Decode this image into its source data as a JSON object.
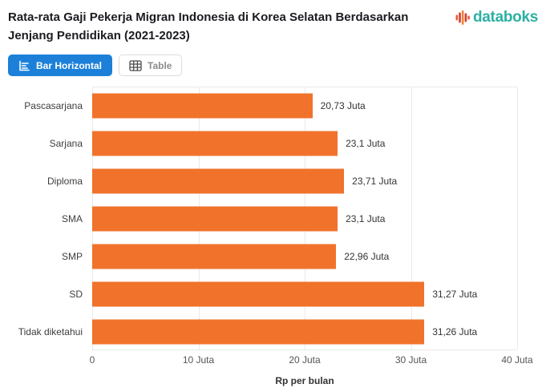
{
  "header": {
    "title_line1": "Rata-rata Gaji Pekerja Migran Indonesia di Korea Selatan Berdasarkan",
    "title_line2": "Jenjang Pendidikan (2021-2023)",
    "logo_text": "databoks"
  },
  "toolbar": {
    "bar_horizontal_label": "Bar Horizontal",
    "table_label": "Table"
  },
  "chart_data": {
    "type": "bar",
    "orientation": "horizontal",
    "title": "Rata-rata Gaji Pekerja Migran Indonesia di Korea Selatan Berdasarkan Jenjang Pendidikan (2021-2023)",
    "categories": [
      "Pascasarjana",
      "Sarjana",
      "Diploma",
      "SMA",
      "SMP",
      "SD",
      "Tidak diketahui"
    ],
    "values": [
      20.73,
      23.1,
      23.71,
      23.1,
      22.96,
      31.27,
      31.26
    ],
    "value_labels": [
      "20,73 Juta",
      "23,1 Juta",
      "23,71 Juta",
      "23,1 Juta",
      "22,96 Juta",
      "31,27 Juta",
      "31,26 Juta"
    ],
    "xlabel": "Rp per bulan",
    "ylabel": "",
    "x_ticks": [
      "0",
      "10 Juta",
      "20 Juta",
      "30 Juta",
      "40 Juta"
    ],
    "xlim": [
      0,
      40
    ],
    "grid": true,
    "legend": "none",
    "bar_color": "#f0722b"
  },
  "colors": {
    "bar_orange": "#f0722b",
    "active_button_blue": "#1c80d9",
    "logo_teal": "#2cb0a4",
    "gridline_gray": "#e9e9e9",
    "title_text": "#1b1c21"
  }
}
